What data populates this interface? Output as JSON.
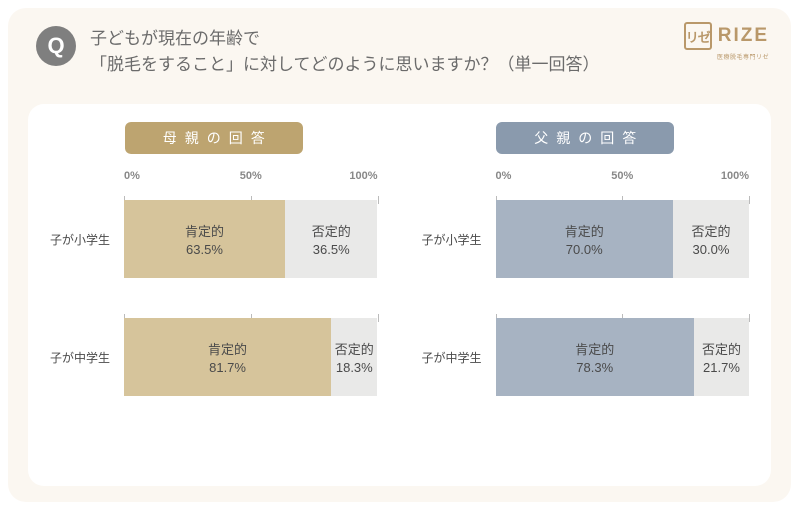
{
  "question": {
    "badge": "Q",
    "line1": "子どもが現在の年齢で",
    "line2": "「脱毛をすること」に対してどのように思いますか？（単一回答）"
  },
  "logo": {
    "mark": "リゼ",
    "text": "RIZE",
    "sub": "医療脱毛専門リゼ"
  },
  "axis": {
    "ticks": [
      {
        "pos": 0,
        "label": "0%"
      },
      {
        "pos": 50,
        "label": "50%"
      },
      {
        "pos": 100,
        "label": "100%"
      }
    ]
  },
  "panels": [
    {
      "title": "母親の回答",
      "header_bg": "#bda470",
      "pos_fill": "#d6c49b",
      "neg_fill": "#e9e9e8",
      "rows": [
        {
          "category": "子が小学生",
          "pos_label": "肯定的",
          "pos_val": "63.5%",
          "pos_pct": 63.5,
          "neg_label": "否定的",
          "neg_val": "36.5%",
          "neg_pct": 36.5
        },
        {
          "category": "子が中学生",
          "pos_label": "肯定的",
          "pos_val": "81.7%",
          "pos_pct": 81.7,
          "neg_label": "否定的",
          "neg_val": "18.3%",
          "neg_pct": 18.3
        }
      ]
    },
    {
      "title": "父親の回答",
      "header_bg": "#8a9aad",
      "pos_fill": "#a7b3c2",
      "neg_fill": "#e9e9e8",
      "rows": [
        {
          "category": "子が小学生",
          "pos_label": "肯定的",
          "pos_val": "70.0%",
          "pos_pct": 70.0,
          "neg_label": "否定的",
          "neg_val": "30.0%",
          "neg_pct": 30.0
        },
        {
          "category": "子が中学生",
          "pos_label": "肯定的",
          "pos_val": "78.3%",
          "pos_pct": 78.3,
          "neg_label": "否定的",
          "neg_val": "21.7%",
          "neg_pct": 21.7
        }
      ]
    }
  ]
}
